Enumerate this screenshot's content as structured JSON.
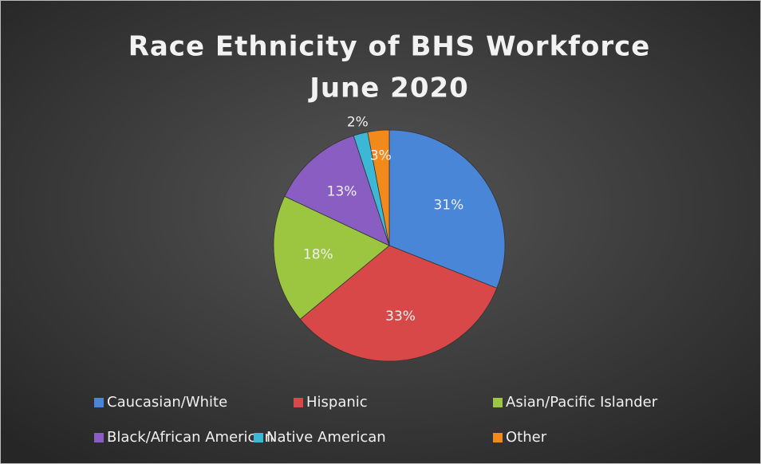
{
  "chart_data": {
    "type": "pie",
    "title": [
      "Race Ethnicity of BHS Workforce",
      "June 2020"
    ],
    "categories": [
      "Caucasian/White",
      "Hispanic",
      "Asian/Pacific Islander",
      "Black/African American",
      "Native American",
      "Other"
    ],
    "values": [
      31,
      33,
      18,
      13,
      2,
      3
    ],
    "value_labels": [
      "31%",
      "33%",
      "18%",
      "13%",
      "2%",
      "3%"
    ],
    "colors": [
      "#4a86d8",
      "#d94848",
      "#9cc63f",
      "#8a5dc2",
      "#3ab8d6",
      "#f28a1b"
    ],
    "legend": "bottom"
  }
}
